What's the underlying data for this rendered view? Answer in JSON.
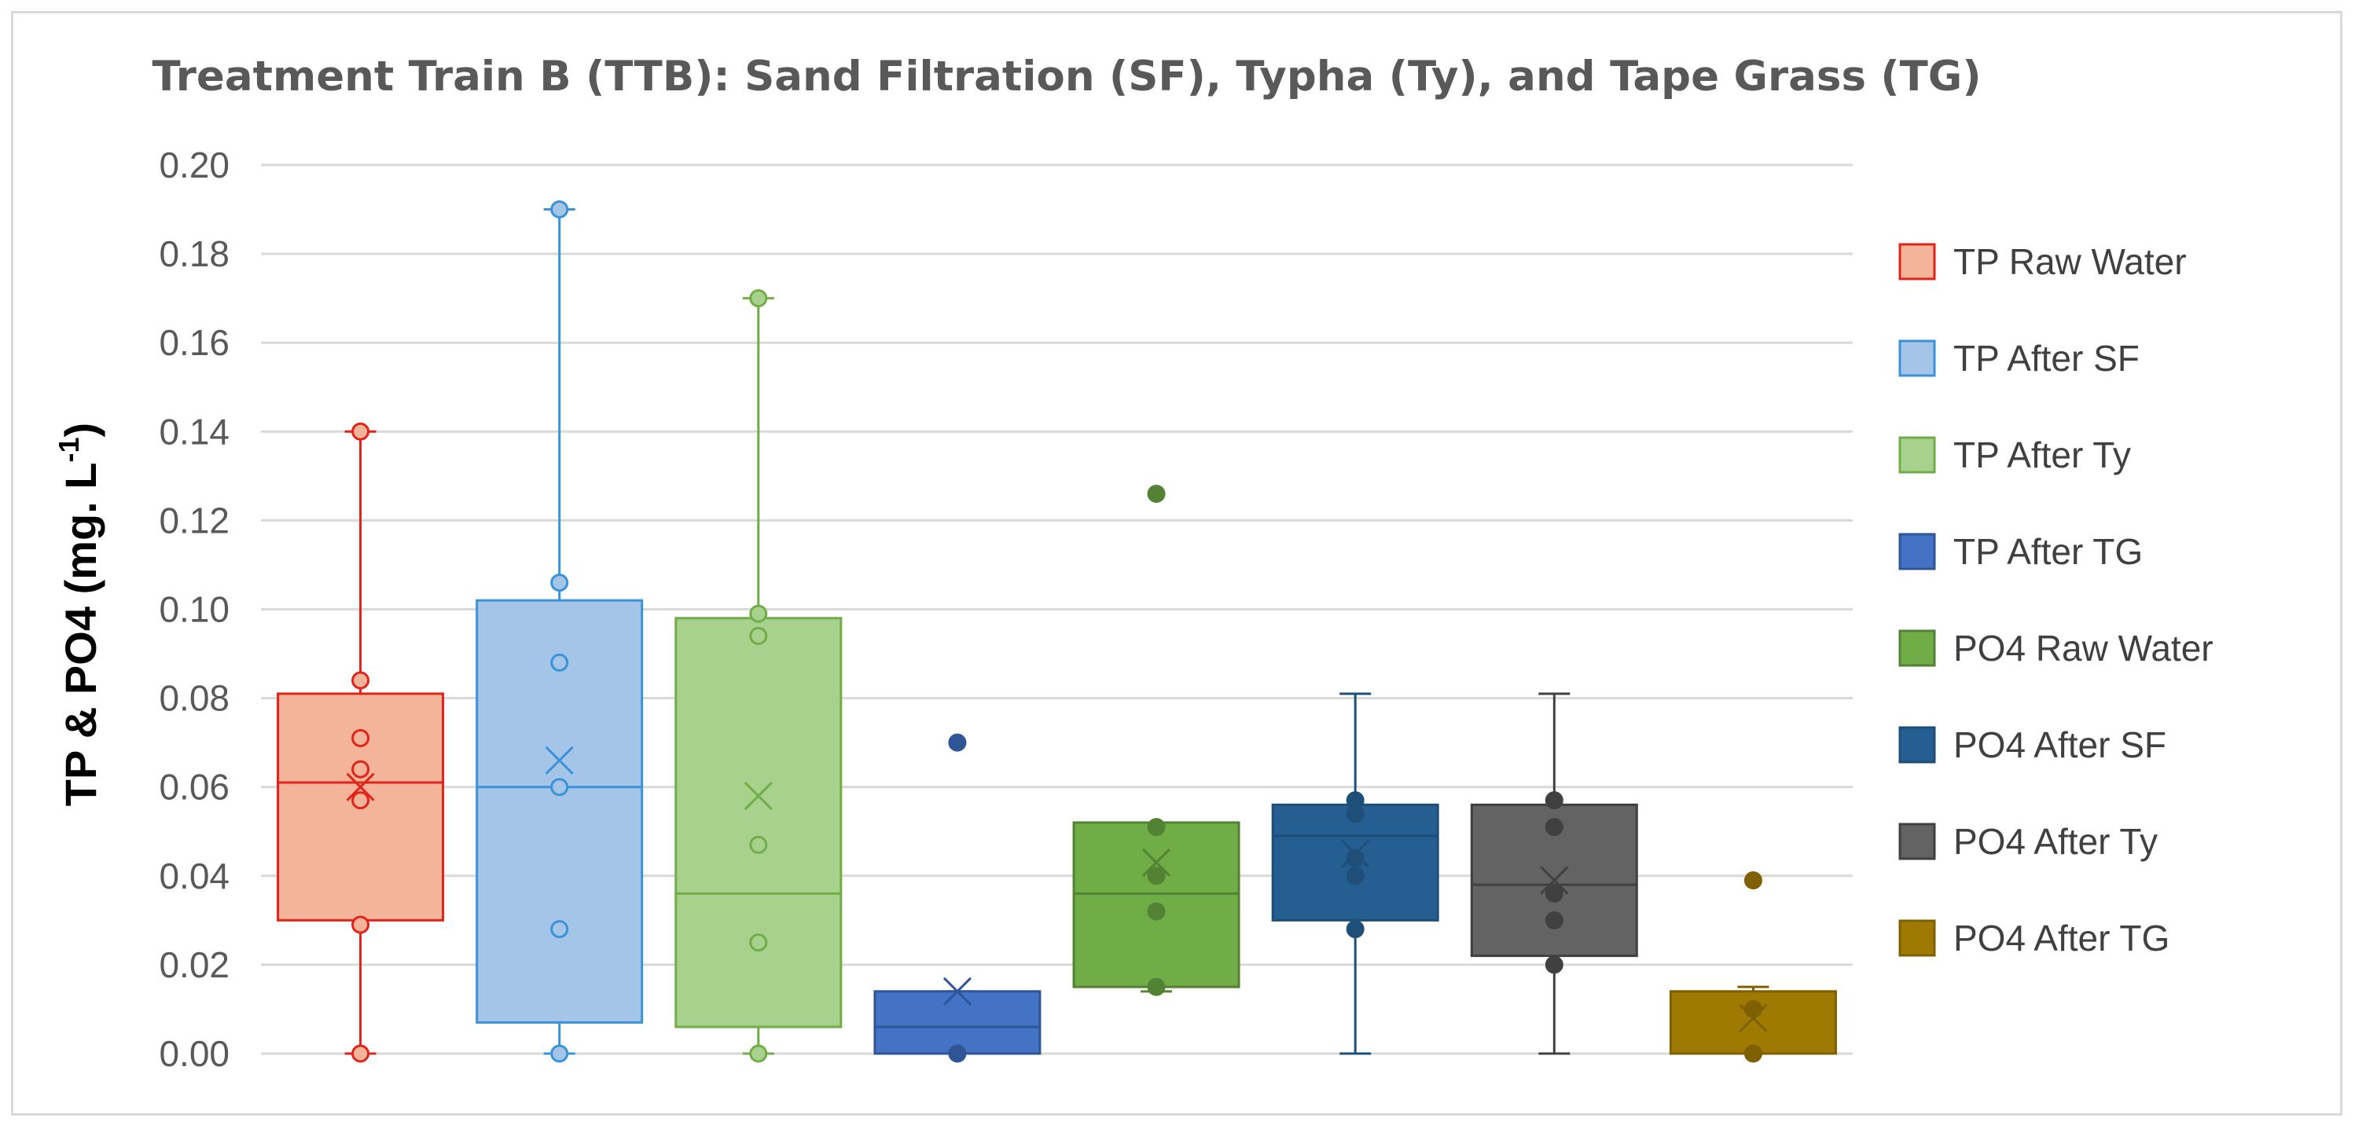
{
  "chart_data": {
    "type": "box",
    "title": "Treatment Train B (TTB): Sand Filtration (SF), Typha (Ty), and Tape Grass (TG)",
    "ylabel": "TP & PO4 (mg. L",
    "ylabel_sup": "-1",
    "ylabel_close": ")",
    "xlabel": "",
    "ylim": [
      0,
      0.2
    ],
    "yticks": [
      "0.00",
      "0.02",
      "0.04",
      "0.06",
      "0.08",
      "0.10",
      "0.12",
      "0.14",
      "0.16",
      "0.18",
      "0.20"
    ],
    "grid": true,
    "legend_position": "right",
    "series": [
      {
        "name": "TP Raw Water",
        "color": "#f4b49a",
        "stroke": "#e2231a",
        "filled_points": false,
        "min": 0.0,
        "q1": 0.03,
        "median": 0.061,
        "q3": 0.081,
        "max": 0.14,
        "mean": 0.06,
        "points": [
          0.0,
          0.029,
          0.057,
          0.064,
          0.071,
          0.084,
          0.14
        ],
        "outliers": []
      },
      {
        "name": "TP After SF",
        "color": "#a4c4e8",
        "stroke": "#3a92d8",
        "filled_points": false,
        "min": 0.0,
        "q1": 0.007,
        "median": 0.06,
        "q3": 0.102,
        "max": 0.19,
        "mean": 0.066,
        "points": [
          0.0,
          0.028,
          0.06,
          0.088,
          0.106,
          0.19
        ],
        "outliers": []
      },
      {
        "name": "TP After Ty",
        "color": "#a9d18e",
        "stroke": "#70ad47",
        "filled_points": false,
        "min": 0.0,
        "q1": 0.006,
        "median": 0.036,
        "q3": 0.098,
        "max": 0.17,
        "mean": 0.058,
        "points": [
          0.0,
          0.025,
          0.047,
          0.094,
          0.099,
          0.17
        ],
        "outliers": []
      },
      {
        "name": "TP After TG",
        "color": "#4472c4",
        "stroke": "#2f5597",
        "filled_points": true,
        "min": 0.0,
        "q1": 0.0,
        "median": 0.006,
        "q3": 0.014,
        "max": 0.014,
        "mean": 0.014,
        "points": [
          0.0
        ],
        "outliers": [
          0.07
        ]
      },
      {
        "name": "PO4 Raw Water",
        "color": "#70ad47",
        "stroke": "#548235",
        "filled_points": true,
        "min": 0.014,
        "q1": 0.015,
        "median": 0.036,
        "q3": 0.052,
        "max": 0.052,
        "mean": 0.043,
        "points": [
          0.015,
          0.032,
          0.04,
          0.051
        ],
        "outliers": [
          0.126
        ]
      },
      {
        "name": "PO4 After SF",
        "color": "#255e91",
        "stroke": "#1f4e79",
        "filled_points": true,
        "min": 0.0,
        "q1": 0.03,
        "median": 0.049,
        "q3": 0.056,
        "max": 0.081,
        "mean": 0.045,
        "points": [
          0.028,
          0.04,
          0.044,
          0.054,
          0.057
        ],
        "outliers": []
      },
      {
        "name": "PO4 After Ty",
        "color": "#636363",
        "stroke": "#404040",
        "filled_points": true,
        "min": 0.0,
        "q1": 0.022,
        "median": 0.038,
        "q3": 0.056,
        "max": 0.081,
        "mean": 0.039,
        "points": [
          0.02,
          0.03,
          0.036,
          0.051,
          0.057
        ],
        "outliers": []
      },
      {
        "name": "PO4 After TG",
        "color": "#9e7a03",
        "stroke": "#7f6000",
        "filled_points": true,
        "min": 0.0,
        "q1": 0.0,
        "median": 0.0,
        "q3": 0.014,
        "max": 0.015,
        "mean": 0.008,
        "points": [
          0.0,
          0.01
        ],
        "outliers": [
          0.039
        ]
      }
    ]
  }
}
